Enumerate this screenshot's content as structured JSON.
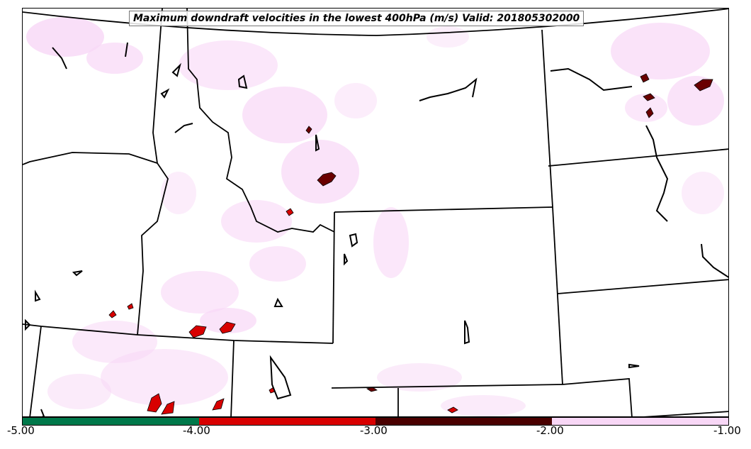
{
  "title": "Maximum downdraft velocities in the lowest 400hPa (m/s) Valid: 201805302000",
  "colorbar": {
    "ticks": [
      "-5.00",
      "-4.00",
      "-3.00",
      "-2.00",
      "-1.00"
    ],
    "colors": [
      "#00784a",
      "#d80000",
      "#4a0000",
      "#f8d7f6"
    ]
  },
  "colors": {
    "light_band": "#f8d7f6",
    "strong": "#d80000",
    "very_strong": "#6a0000",
    "boundaries": "#000000"
  }
}
